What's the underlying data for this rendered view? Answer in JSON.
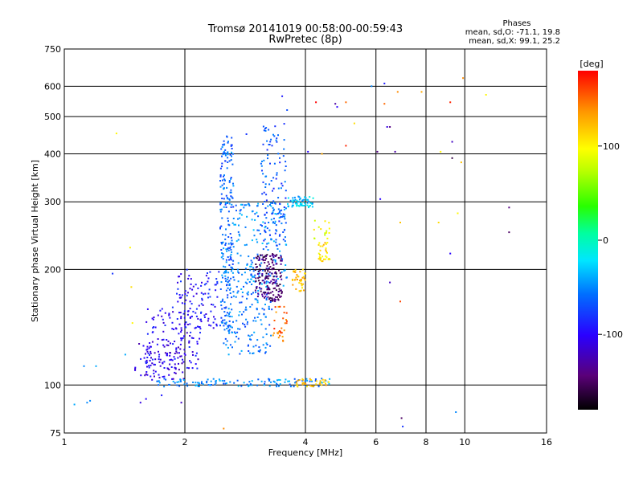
{
  "chart_data": {
    "type": "scatter",
    "title": "Tromsø 20141019 00:58:00-00:59:43",
    "subtitle": "RwPretec (8p)",
    "xlabel": "Frequency [MHz]",
    "ylabel": "Stationary phase Virtual Height [km]",
    "x_scale": "log",
    "y_scale": "log",
    "xlim": [
      1,
      16
    ],
    "ylim": [
      75,
      750
    ],
    "x_ticks": [
      "1",
      "2",
      "4",
      "6",
      "8",
      "10",
      "16"
    ],
    "y_ticks": [
      "75",
      "100",
      "200",
      "300",
      "400",
      "500",
      "600",
      "750"
    ],
    "grid": true,
    "phase_header": "Phases",
    "phase_stats": [
      "mean, sd,O: -71.1, 19.8",
      "mean, sd,X:  99.1, 25.2"
    ],
    "colorbar": {
      "label": "[deg]",
      "ticks": [
        "100",
        "0",
        "-100"
      ],
      "range": [
        -180,
        180
      ]
    },
    "clusters": [
      {
        "x": [
          1.5,
          2.0
        ],
        "y": [
          103,
          130
        ],
        "phase": -110,
        "n": 90
      },
      {
        "x": [
          1.6,
          2.2
        ],
        "y": [
          110,
          160
        ],
        "phase": -100,
        "n": 120
      },
      {
        "x": [
          1.9,
          2.45
        ],
        "y": [
          140,
          200
        ],
        "phase": -95,
        "n": 100
      },
      {
        "x": [
          2.45,
          2.65
        ],
        "y": [
          140,
          450
        ],
        "phase": -60,
        "n": 220
      },
      {
        "x": [
          2.5,
          3.3
        ],
        "y": [
          120,
          200
        ],
        "phase": -55,
        "n": 170
      },
      {
        "x": [
          2.65,
          3.6
        ],
        "y": [
          180,
          300
        ],
        "phase": -50,
        "n": 160
      },
      {
        "x": [
          3.0,
          3.5
        ],
        "y": [
          165,
          220
        ],
        "phase": -145,
        "n": 170
      },
      {
        "x": [
          3.1,
          3.6
        ],
        "y": [
          230,
          480
        ],
        "phase": -70,
        "n": 110
      },
      {
        "x": [
          3.3,
          3.6
        ],
        "y": [
          130,
          160
        ],
        "phase": 150,
        "n": 30
      },
      {
        "x": [
          3.7,
          4.0
        ],
        "y": [
          175,
          200
        ],
        "phase": 120,
        "n": 40
      },
      {
        "x": [
          3.6,
          4.2
        ],
        "y": [
          290,
          310
        ],
        "phase": -30,
        "n": 60
      },
      {
        "x": [
          4.3,
          4.6
        ],
        "y": [
          210,
          235
        ],
        "phase": 110,
        "n": 30
      },
      {
        "x": [
          4.2,
          4.6
        ],
        "y": [
          240,
          270
        ],
        "phase": 90,
        "n": 15
      },
      {
        "x": [
          1.7,
          4.6
        ],
        "y": [
          99,
          104
        ],
        "phase": -50,
        "n": 120
      },
      {
        "x": [
          3.8,
          4.6
        ],
        "y": [
          99,
          104
        ],
        "phase": 120,
        "n": 35
      }
    ],
    "points": [
      {
        "x": 1.06,
        "y": 89,
        "phase": -40
      },
      {
        "x": 1.14,
        "y": 90,
        "phase": -50
      },
      {
        "x": 1.16,
        "y": 91,
        "phase": -50
      },
      {
        "x": 1.12,
        "y": 112,
        "phase": -50
      },
      {
        "x": 1.2,
        "y": 112,
        "phase": -40
      },
      {
        "x": 1.32,
        "y": 195,
        "phase": -80
      },
      {
        "x": 1.35,
        "y": 452,
        "phase": 100
      },
      {
        "x": 1.42,
        "y": 120,
        "phase": -40
      },
      {
        "x": 1.46,
        "y": 228,
        "phase": 100
      },
      {
        "x": 1.47,
        "y": 180,
        "phase": 110
      },
      {
        "x": 1.48,
        "y": 145,
        "phase": 100
      },
      {
        "x": 1.55,
        "y": 90,
        "phase": -110
      },
      {
        "x": 1.6,
        "y": 92,
        "phase": -100
      },
      {
        "x": 1.75,
        "y": 94,
        "phase": -90
      },
      {
        "x": 1.96,
        "y": 90,
        "phase": -120
      },
      {
        "x": 2.5,
        "y": 77,
        "phase": 140
      },
      {
        "x": 2.85,
        "y": 450,
        "phase": -80
      },
      {
        "x": 3.5,
        "y": 565,
        "phase": -90
      },
      {
        "x": 3.6,
        "y": 520,
        "phase": -70
      },
      {
        "x": 4.06,
        "y": 405,
        "phase": -100
      },
      {
        "x": 4.25,
        "y": 545,
        "phase": 180
      },
      {
        "x": 4.4,
        "y": 400,
        "phase": 130
      },
      {
        "x": 4.75,
        "y": 540,
        "phase": -130
      },
      {
        "x": 4.8,
        "y": 530,
        "phase": -100
      },
      {
        "x": 5.05,
        "y": 545,
        "phase": 150
      },
      {
        "x": 5.05,
        "y": 420,
        "phase": 170
      },
      {
        "x": 5.3,
        "y": 480,
        "phase": 110
      },
      {
        "x": 5.85,
        "y": 600,
        "phase": -50
      },
      {
        "x": 6.05,
        "y": 405,
        "phase": -140
      },
      {
        "x": 6.15,
        "y": 305,
        "phase": -100
      },
      {
        "x": 6.3,
        "y": 540,
        "phase": 150
      },
      {
        "x": 6.4,
        "y": 470,
        "phase": -110
      },
      {
        "x": 6.5,
        "y": 185,
        "phase": -120
      },
      {
        "x": 6.7,
        "y": 405,
        "phase": -130
      },
      {
        "x": 6.9,
        "y": 265,
        "phase": 120
      },
      {
        "x": 6.9,
        "y": 165,
        "phase": 160
      },
      {
        "x": 6.95,
        "y": 82,
        "phase": -150
      },
      {
        "x": 7.0,
        "y": 78,
        "phase": -80
      },
      {
        "x": 8.6,
        "y": 265,
        "phase": 110
      },
      {
        "x": 8.7,
        "y": 405,
        "phase": 100
      },
      {
        "x": 9.2,
        "y": 545,
        "phase": 170
      },
      {
        "x": 9.3,
        "y": 390,
        "phase": -160
      },
      {
        "x": 9.5,
        "y": 85,
        "phase": -50
      },
      {
        "x": 9.6,
        "y": 280,
        "phase": 100
      },
      {
        "x": 9.8,
        "y": 380,
        "phase": 120
      },
      {
        "x": 9.9,
        "y": 630,
        "phase": 140
      },
      {
        "x": 11.3,
        "y": 570,
        "phase": 100
      },
      {
        "x": 12.9,
        "y": 290,
        "phase": -140
      },
      {
        "x": 12.9,
        "y": 250,
        "phase": -150
      },
      {
        "x": 6.5,
        "y": 470,
        "phase": -140
      },
      {
        "x": 6.3,
        "y": 610,
        "phase": -90
      },
      {
        "x": 6.8,
        "y": 580,
        "phase": 140
      },
      {
        "x": 9.3,
        "y": 430,
        "phase": -120
      },
      {
        "x": 9.2,
        "y": 220,
        "phase": -100
      },
      {
        "x": 7.8,
        "y": 580,
        "phase": 130
      }
    ]
  }
}
